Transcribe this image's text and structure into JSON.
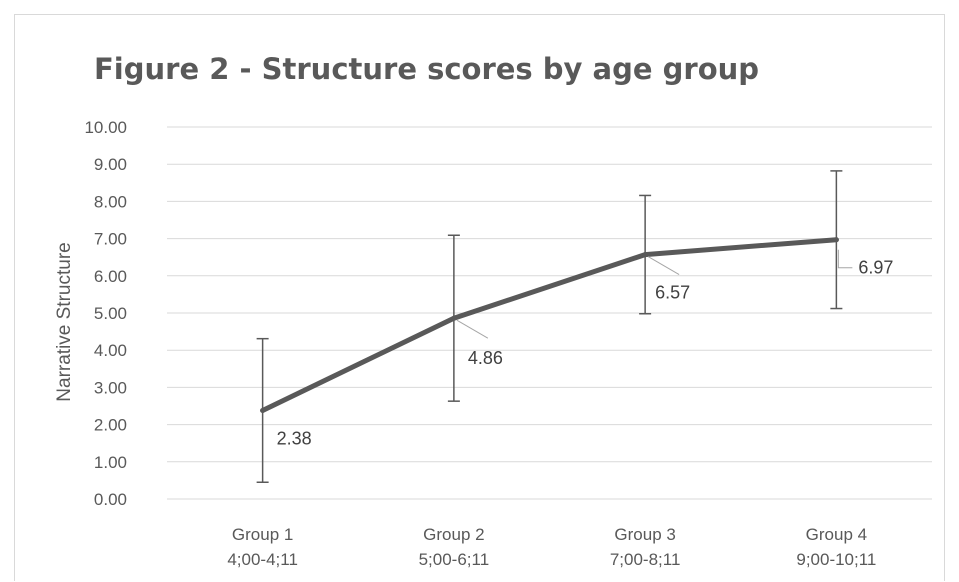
{
  "chart_data": {
    "type": "line",
    "title": "Figure 2 - Structure scores by age group",
    "xlabel": "",
    "ylabel": "Narrative Structure",
    "ylim": [
      0,
      10
    ],
    "y_ticks": [
      "0.00",
      "1.00",
      "2.00",
      "3.00",
      "4.00",
      "5.00",
      "6.00",
      "7.00",
      "8.00",
      "9.00",
      "10.00"
    ],
    "categories": [
      [
        "Group 1",
        "4;00-4;11"
      ],
      [
        "Group 2",
        "5;00-6;11"
      ],
      [
        "Group 3",
        "7;00-8;11"
      ],
      [
        "Group 4",
        "9;00-10;11"
      ]
    ],
    "series": [
      {
        "values": [
          2.38,
          4.86,
          6.57,
          6.97
        ],
        "data_labels": [
          "2.38",
          "4.86",
          "6.57",
          "6.97"
        ],
        "error_low": [
          0.45,
          2.63,
          4.98,
          5.12
        ],
        "error_high": [
          4.31,
          7.09,
          8.16,
          8.82
        ],
        "color": "#595959"
      }
    ],
    "grid": true,
    "legend": "none"
  },
  "colors": {
    "text": "#595959",
    "grid": "#d9d9d9",
    "line": "#595959"
  }
}
